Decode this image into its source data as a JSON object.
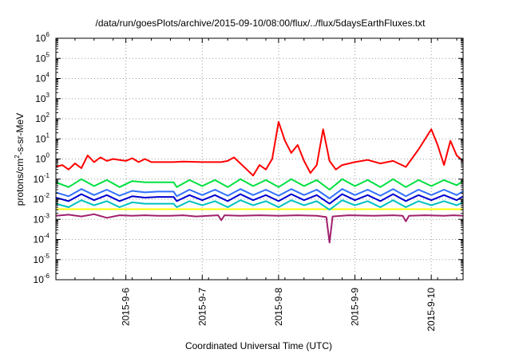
{
  "chart_data": {
    "type": "line",
    "title": "/data/run/goesPlots/archive/2015-09-10/08:00/flux/../flux/5daysEarthFluxes.txt",
    "xlabel": "Coordinated Universal Time (UTC)",
    "ylabel": {
      "base": "protons/cm",
      "sup": "2",
      "rest": "-s-sr-MeV"
    },
    "y_scale": "log",
    "ylim": [
      1e-06,
      1000000.0
    ],
    "y_ticks": [
      {
        "value": 1e-06,
        "base": "10",
        "exp": "-6"
      },
      {
        "value": 1e-05,
        "base": "10",
        "exp": "-5"
      },
      {
        "value": 0.0001,
        "base": "10",
        "exp": "-4"
      },
      {
        "value": 0.001,
        "base": "10",
        "exp": "-3"
      },
      {
        "value": 0.01,
        "base": "10",
        "exp": "-2"
      },
      {
        "value": 0.1,
        "base": "10",
        "exp": "-1"
      },
      {
        "value": 1,
        "base": "10",
        "exp": "0"
      },
      {
        "value": 10,
        "base": "10",
        "exp": "1"
      },
      {
        "value": 100,
        "base": "10",
        "exp": "2"
      },
      {
        "value": 1000,
        "base": "10",
        "exp": "3"
      },
      {
        "value": 10000,
        "base": "10",
        "exp": "4"
      },
      {
        "value": 100000,
        "base": "10",
        "exp": "5"
      },
      {
        "value": 1000000,
        "base": "10",
        "exp": "6"
      }
    ],
    "xlim": [
      "2015-09-05T02:00",
      "2015-09-10T10:00"
    ],
    "x_ticks": [
      {
        "value": "2015-09-06T00:00",
        "label": "2015-9-6"
      },
      {
        "value": "2015-09-07T00:00",
        "label": "2015-9-7"
      },
      {
        "value": "2015-09-08T00:00",
        "label": "2015-9-8"
      },
      {
        "value": "2015-09-09T00:00",
        "label": "2015-9-9"
      },
      {
        "value": "2015-09-10T00:00",
        "label": "2015-9-10"
      }
    ],
    "grid": true,
    "series": [
      {
        "color": "#a0206e",
        "points": [
          [
            "2015-09-05T02:00",
            0.0015
          ],
          [
            "2015-09-05T06:00",
            0.0017
          ],
          [
            "2015-09-05T10:00",
            0.0014
          ],
          [
            "2015-09-05T14:00",
            0.0018
          ],
          [
            "2015-09-05T18:00",
            0.0012
          ],
          [
            "2015-09-05T22:00",
            0.0016
          ],
          [
            "2015-09-06T02:00",
            0.0015
          ],
          [
            "2015-09-06T06:00",
            0.0016
          ],
          [
            "2015-09-06T10:00",
            0.0015
          ],
          [
            "2015-09-06T14:00",
            0.0015
          ],
          [
            "2015-09-06T18:00",
            0.0016
          ],
          [
            "2015-09-06T22:00",
            0.0014
          ],
          [
            "2015-09-07T02:00",
            0.0015
          ],
          [
            "2015-09-07T05:00",
            0.0016
          ],
          [
            "2015-09-07T06:00",
            0.0009
          ],
          [
            "2015-09-07T07:00",
            0.0016
          ],
          [
            "2015-09-07T12:00",
            0.0015
          ],
          [
            "2015-09-07T18:00",
            0.0016
          ],
          [
            "2015-09-08T00:00",
            0.0015
          ],
          [
            "2015-09-08T06:00",
            0.0016
          ],
          [
            "2015-09-08T12:00",
            0.0015
          ],
          [
            "2015-09-08T15:00",
            0.0013
          ],
          [
            "2015-09-08T16:00",
            7e-05
          ],
          [
            "2015-09-08T17:00",
            0.0014
          ],
          [
            "2015-09-08T22:00",
            0.0016
          ],
          [
            "2015-09-09T06:00",
            0.0015
          ],
          [
            "2015-09-09T12:00",
            0.0016
          ],
          [
            "2015-09-09T15:00",
            0.0015
          ],
          [
            "2015-09-09T16:00",
            0.0008
          ],
          [
            "2015-09-09T17:00",
            0.0015
          ],
          [
            "2015-09-09T22:00",
            0.0016
          ],
          [
            "2015-09-10T04:00",
            0.0015
          ],
          [
            "2015-09-10T07:00",
            0.0016
          ],
          [
            "2015-09-10T10:00",
            0.0015
          ]
        ]
      },
      {
        "color": "#ffff00",
        "points": [
          [
            "2015-09-05T02:00",
            0.0032
          ],
          [
            "2015-09-06T00:00",
            0.0032
          ],
          [
            "2015-09-07T00:00",
            0.0032
          ],
          [
            "2015-09-08T00:00",
            0.0032
          ],
          [
            "2015-09-09T00:00",
            0.0032
          ],
          [
            "2015-09-10T00:00",
            0.0032
          ],
          [
            "2015-09-10T10:00",
            0.0032
          ]
        ]
      },
      {
        "color": "#00c0c0",
        "points": [
          [
            "2015-09-05T02:00",
            0.006
          ],
          [
            "2015-09-05T06:00",
            0.004
          ],
          [
            "2015-09-05T10:00",
            0.009
          ],
          [
            "2015-09-05T14:00",
            0.005
          ],
          [
            "2015-09-05T18:00",
            0.008
          ],
          [
            "2015-09-05T22:00",
            0.004
          ],
          [
            "2015-09-06T02:00",
            0.007
          ],
          [
            "2015-09-06T06:00",
            0.006
          ],
          [
            "2015-09-06T10:00",
            0.006
          ],
          [
            "2015-09-06T15:00",
            0.006
          ],
          [
            "2015-09-06T16:00",
            0.004
          ],
          [
            "2015-09-06T20:00",
            0.008
          ],
          [
            "2015-09-07T00:00",
            0.005
          ],
          [
            "2015-09-07T04:00",
            0.008
          ],
          [
            "2015-09-07T08:00",
            0.004
          ],
          [
            "2015-09-07T12:00",
            0.009
          ],
          [
            "2015-09-07T16:00",
            0.005
          ],
          [
            "2015-09-07T20:00",
            0.008
          ],
          [
            "2015-09-08T00:00",
            0.004
          ],
          [
            "2015-09-08T04:00",
            0.009
          ],
          [
            "2015-09-08T08:00",
            0.005
          ],
          [
            "2015-09-08T12:00",
            0.008
          ],
          [
            "2015-09-08T16:00",
            0.003
          ],
          [
            "2015-09-08T20:00",
            0.009
          ],
          [
            "2015-09-09T00:00",
            0.005
          ],
          [
            "2015-09-09T04:00",
            0.008
          ],
          [
            "2015-09-09T08:00",
            0.004
          ],
          [
            "2015-09-09T12:00",
            0.009
          ],
          [
            "2015-09-09T16:00",
            0.004
          ],
          [
            "2015-09-09T20:00",
            0.008
          ],
          [
            "2015-09-10T00:00",
            0.005
          ],
          [
            "2015-09-10T04:00",
            0.008
          ],
          [
            "2015-09-10T08:00",
            0.005
          ],
          [
            "2015-09-10T10:00",
            0.007
          ]
        ]
      },
      {
        "color": "#0000d0",
        "points": [
          [
            "2015-09-05T02:00",
            0.012
          ],
          [
            "2015-09-05T06:00",
            0.008
          ],
          [
            "2015-09-05T10:00",
            0.018
          ],
          [
            "2015-09-05T14:00",
            0.009
          ],
          [
            "2015-09-05T18:00",
            0.016
          ],
          [
            "2015-09-05T22:00",
            0.008
          ],
          [
            "2015-09-06T02:00",
            0.014
          ],
          [
            "2015-09-06T06:00",
            0.012
          ],
          [
            "2015-09-06T10:00",
            0.013
          ],
          [
            "2015-09-06T15:00",
            0.013
          ],
          [
            "2015-09-06T16:00",
            0.008
          ],
          [
            "2015-09-06T20:00",
            0.016
          ],
          [
            "2015-09-07T00:00",
            0.009
          ],
          [
            "2015-09-07T04:00",
            0.016
          ],
          [
            "2015-09-07T08:00",
            0.008
          ],
          [
            "2015-09-07T12:00",
            0.018
          ],
          [
            "2015-09-07T16:00",
            0.009
          ],
          [
            "2015-09-07T20:00",
            0.016
          ],
          [
            "2015-09-08T00:00",
            0.008
          ],
          [
            "2015-09-08T04:00",
            0.018
          ],
          [
            "2015-09-08T08:00",
            0.009
          ],
          [
            "2015-09-08T12:00",
            0.016
          ],
          [
            "2015-09-08T16:00",
            0.006
          ],
          [
            "2015-09-08T20:00",
            0.018
          ],
          [
            "2015-09-09T00:00",
            0.009
          ],
          [
            "2015-09-09T04:00",
            0.016
          ],
          [
            "2015-09-09T08:00",
            0.008
          ],
          [
            "2015-09-09T12:00",
            0.018
          ],
          [
            "2015-09-09T16:00",
            0.008
          ],
          [
            "2015-09-09T20:00",
            0.016
          ],
          [
            "2015-09-10T00:00",
            0.009
          ],
          [
            "2015-09-10T04:00",
            0.016
          ],
          [
            "2015-09-10T08:00",
            0.009
          ],
          [
            "2015-09-10T10:00",
            0.014
          ]
        ]
      },
      {
        "color": "#3070ff",
        "points": [
          [
            "2015-09-05T02:00",
            0.022
          ],
          [
            "2015-09-05T06:00",
            0.014
          ],
          [
            "2015-09-05T10:00",
            0.032
          ],
          [
            "2015-09-05T14:00",
            0.016
          ],
          [
            "2015-09-05T18:00",
            0.03
          ],
          [
            "2015-09-05T22:00",
            0.015
          ],
          [
            "2015-09-06T02:00",
            0.026
          ],
          [
            "2015-09-06T06:00",
            0.022
          ],
          [
            "2015-09-06T10:00",
            0.024
          ],
          [
            "2015-09-06T15:00",
            0.024
          ],
          [
            "2015-09-06T16:00",
            0.014
          ],
          [
            "2015-09-06T20:00",
            0.03
          ],
          [
            "2015-09-07T00:00",
            0.016
          ],
          [
            "2015-09-07T04:00",
            0.03
          ],
          [
            "2015-09-07T08:00",
            0.015
          ],
          [
            "2015-09-07T12:00",
            0.032
          ],
          [
            "2015-09-07T16:00",
            0.016
          ],
          [
            "2015-09-07T20:00",
            0.03
          ],
          [
            "2015-09-08T00:00",
            0.015
          ],
          [
            "2015-09-08T04:00",
            0.032
          ],
          [
            "2015-09-08T08:00",
            0.016
          ],
          [
            "2015-09-08T12:00",
            0.03
          ],
          [
            "2015-09-08T16:00",
            0.011
          ],
          [
            "2015-09-08T20:00",
            0.032
          ],
          [
            "2015-09-09T00:00",
            0.016
          ],
          [
            "2015-09-09T04:00",
            0.03
          ],
          [
            "2015-09-09T08:00",
            0.015
          ],
          [
            "2015-09-09T12:00",
            0.032
          ],
          [
            "2015-09-09T16:00",
            0.014
          ],
          [
            "2015-09-09T20:00",
            0.03
          ],
          [
            "2015-09-10T00:00",
            0.016
          ],
          [
            "2015-09-10T04:00",
            0.03
          ],
          [
            "2015-09-10T08:00",
            0.016
          ],
          [
            "2015-09-10T10:00",
            0.025
          ]
        ]
      },
      {
        "color": "#00e040",
        "points": [
          [
            "2015-09-05T02:00",
            0.07
          ],
          [
            "2015-09-05T06:00",
            0.04
          ],
          [
            "2015-09-05T10:00",
            0.1
          ],
          [
            "2015-09-05T14:00",
            0.045
          ],
          [
            "2015-09-05T18:00",
            0.09
          ],
          [
            "2015-09-05T22:00",
            0.04
          ],
          [
            "2015-09-06T02:00",
            0.08
          ],
          [
            "2015-09-06T06:00",
            0.07
          ],
          [
            "2015-09-06T10:00",
            0.07
          ],
          [
            "2015-09-06T15:00",
            0.07
          ],
          [
            "2015-09-06T16:00",
            0.04
          ],
          [
            "2015-09-06T20:00",
            0.09
          ],
          [
            "2015-09-07T00:00",
            0.045
          ],
          [
            "2015-09-07T04:00",
            0.09
          ],
          [
            "2015-09-07T08:00",
            0.04
          ],
          [
            "2015-09-07T12:00",
            0.1
          ],
          [
            "2015-09-07T16:00",
            0.045
          ],
          [
            "2015-09-07T20:00",
            0.09
          ],
          [
            "2015-09-08T00:00",
            0.04
          ],
          [
            "2015-09-08T04:00",
            0.1
          ],
          [
            "2015-09-08T08:00",
            0.045
          ],
          [
            "2015-09-08T12:00",
            0.09
          ],
          [
            "2015-09-08T16:00",
            0.03
          ],
          [
            "2015-09-08T20:00",
            0.1
          ],
          [
            "2015-09-09T00:00",
            0.045
          ],
          [
            "2015-09-09T04:00",
            0.09
          ],
          [
            "2015-09-09T08:00",
            0.04
          ],
          [
            "2015-09-09T12:00",
            0.1
          ],
          [
            "2015-09-09T16:00",
            0.04
          ],
          [
            "2015-09-09T20:00",
            0.09
          ],
          [
            "2015-09-10T00:00",
            0.045
          ],
          [
            "2015-09-10T04:00",
            0.09
          ],
          [
            "2015-09-10T08:00",
            0.05
          ],
          [
            "2015-09-10T10:00",
            0.08
          ]
        ]
      },
      {
        "color": "#ff0000",
        "points": [
          [
            "2015-09-05T02:00",
            0.4
          ],
          [
            "2015-09-05T04:00",
            0.5
          ],
          [
            "2015-09-05T06:00",
            0.3
          ],
          [
            "2015-09-05T08:00",
            0.6
          ],
          [
            "2015-09-05T10:00",
            0.35
          ],
          [
            "2015-09-05T12:00",
            1.5
          ],
          [
            "2015-09-05T14:00",
            0.7
          ],
          [
            "2015-09-05T16:00",
            1.2
          ],
          [
            "2015-09-05T18:00",
            0.8
          ],
          [
            "2015-09-05T20:00",
            1.0
          ],
          [
            "2015-09-05T22:00",
            0.9
          ],
          [
            "2015-09-06T00:00",
            0.8
          ],
          [
            "2015-09-06T02:00",
            1.1
          ],
          [
            "2015-09-06T04:00",
            0.7
          ],
          [
            "2015-09-06T06:00",
            1.0
          ],
          [
            "2015-09-06T08:00",
            0.7
          ],
          [
            "2015-09-06T15:00",
            0.7
          ],
          [
            "2015-09-06T18:00",
            0.75
          ],
          [
            "2015-09-07T00:00",
            0.7
          ],
          [
            "2015-09-07T06:00",
            0.7
          ],
          [
            "2015-09-07T08:00",
            0.8
          ],
          [
            "2015-09-07T10:00",
            1.2
          ],
          [
            "2015-09-07T12:00",
            0.6
          ],
          [
            "2015-09-07T14:00",
            0.3
          ],
          [
            "2015-09-07T16:00",
            0.15
          ],
          [
            "2015-09-07T18:00",
            0.5
          ],
          [
            "2015-09-07T20:00",
            0.3
          ],
          [
            "2015-09-07T22:00",
            1.0
          ],
          [
            "2015-09-08T00:00",
            70
          ],
          [
            "2015-09-08T02:00",
            8
          ],
          [
            "2015-09-08T04:00",
            2
          ],
          [
            "2015-09-08T06:00",
            5
          ],
          [
            "2015-09-08T08:00",
            0.8
          ],
          [
            "2015-09-08T10:00",
            0.2
          ],
          [
            "2015-09-08T12:00",
            0.5
          ],
          [
            "2015-09-08T14:00",
            30
          ],
          [
            "2015-09-08T16:00",
            0.8
          ],
          [
            "2015-09-08T18:00",
            0.3
          ],
          [
            "2015-09-08T20:00",
            0.5
          ],
          [
            "2015-09-09T00:00",
            0.7
          ],
          [
            "2015-09-09T04:00",
            0.9
          ],
          [
            "2015-09-09T08:00",
            0.6
          ],
          [
            "2015-09-09T12:00",
            0.8
          ],
          [
            "2015-09-09T16:00",
            0.4
          ],
          [
            "2015-09-09T20:00",
            3
          ],
          [
            "2015-09-10T00:00",
            30
          ],
          [
            "2015-09-10T02:00",
            5
          ],
          [
            "2015-09-10T04:00",
            0.5
          ],
          [
            "2015-09-10T06:00",
            8
          ],
          [
            "2015-09-10T08:00",
            1.5
          ],
          [
            "2015-09-10T10:00",
            0.8
          ]
        ]
      }
    ]
  }
}
